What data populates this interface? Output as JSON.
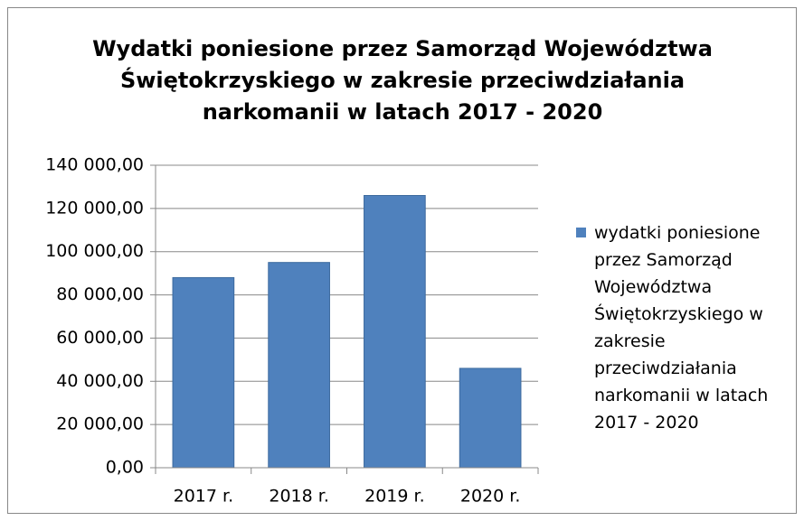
{
  "chart_data": {
    "type": "bar",
    "title": "Wydatki poniesione przez Samorząd Województwa Świętokrzyskiego w zakresie przeciwdziałania narkomanii w latach 2017 - 2020",
    "categories": [
      "2017 r.",
      "2018 r.",
      "2019 r.",
      "2020 r."
    ],
    "series": [
      {
        "name": "wydatki poniesione przez Samorząd Województwa Świętokrzyskiego w zakresie przeciwdziałania narkomanii w latach 2017 - 2020",
        "color": "#4f81bd",
        "values": [
          88000,
          95000,
          126000,
          46000
        ]
      }
    ],
    "ylim": [
      0,
      140000
    ],
    "yticks": [
      {
        "value": 0,
        "label": "0,00"
      },
      {
        "value": 20000,
        "label": "20 000,00"
      },
      {
        "value": 40000,
        "label": "40 000,00"
      },
      {
        "value": 60000,
        "label": "60 000,00"
      },
      {
        "value": 80000,
        "label": "80 000,00"
      },
      {
        "value": 100000,
        "label": "100 000,00"
      },
      {
        "value": 120000,
        "label": "120 000,00"
      },
      {
        "value": 140000,
        "label": "140 000,00"
      }
    ],
    "grid": true,
    "legend": "right"
  }
}
